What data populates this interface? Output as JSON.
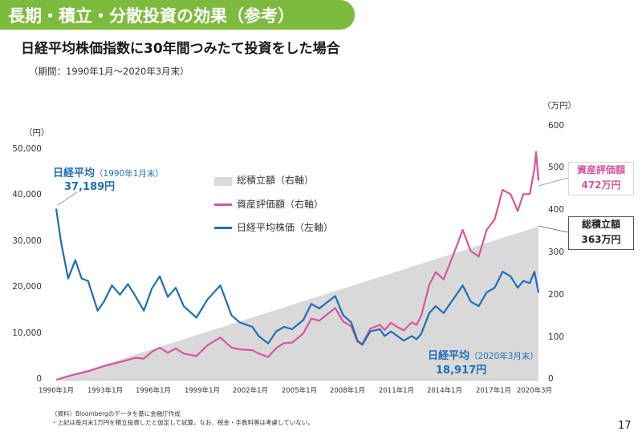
{
  "header": {
    "banner_title": "長期・積立・分散投資の効果（参考）",
    "subtitle": "日経平均株価指数に30年間つみたて投資をした場合",
    "period": "（期間：1990年1月～2020年3月末）"
  },
  "axes": {
    "left_unit": "（円）",
    "right_unit": "（万円）",
    "left_ticks": [
      "50,000",
      "40,000",
      "30,000",
      "20,000",
      "10,000",
      "0"
    ],
    "right_ticks": [
      "600",
      "500",
      "400",
      "300",
      "200",
      "100",
      "0"
    ],
    "x_ticks": [
      "1990年1月",
      "1993年1月",
      "1996年1月",
      "1999年1月",
      "2002年1月",
      "2005年1月",
      "2008年1月",
      "2011年1月",
      "2014年1月",
      "2017年1月",
      "2020年3月"
    ]
  },
  "legend": {
    "cumulative": "総積立額（右軸）",
    "asset_value": "資産評価額（右軸）",
    "nikkei": "日経平均株価（左軸）"
  },
  "annotations": {
    "start_label": "日経平均",
    "start_date": "（1990年1月末）",
    "start_value": "37,189円",
    "end_label": "日経平均",
    "end_date": "（2020年3月末）",
    "end_value": "18,917円",
    "asset_box_label": "資産評価額",
    "asset_box_value": "472万円",
    "total_box_label": "総積立額",
    "total_box_value": "363万円"
  },
  "notes": {
    "source": "（資料）Bloombergのデータを基に金融庁作成",
    "assumption": "・上記は毎月末1万円を積立投資したと仮定して試算。なお、税金・手数料等は考慮していない。"
  },
  "page_number": "17",
  "colors": {
    "banner": "#7dbb3f",
    "nikkei": "#1f6eb5",
    "asset_value": "#d6559c",
    "cumulative": "#d9d9d9"
  },
  "chart_data": {
    "type": "line",
    "title": "日経平均株価指数に30年間つみたて投資をした場合",
    "x_unit": "year",
    "left_axis": {
      "label": "円",
      "ylim": [
        0,
        50000
      ]
    },
    "right_axis": {
      "label": "万円",
      "ylim": [
        0,
        600
      ]
    },
    "series": [
      {
        "name": "日経平均株価（左軸）",
        "axis": "left",
        "type": "line",
        "points": [
          [
            1990.0,
            37189
          ],
          [
            1990.3,
            30000
          ],
          [
            1990.75,
            22000
          ],
          [
            1991.2,
            26000
          ],
          [
            1991.6,
            22000
          ],
          [
            1992.0,
            21500
          ],
          [
            1992.6,
            15000
          ],
          [
            1993.0,
            17000
          ],
          [
            1993.5,
            20500
          ],
          [
            1994.0,
            18500
          ],
          [
            1994.5,
            20800
          ],
          [
            1995.0,
            18000
          ],
          [
            1995.5,
            15000
          ],
          [
            1996.0,
            19800
          ],
          [
            1996.5,
            22500
          ],
          [
            1997.0,
            18000
          ],
          [
            1997.5,
            20000
          ],
          [
            1998.0,
            16000
          ],
          [
            1998.8,
            13500
          ],
          [
            1999.5,
            17500
          ],
          [
            2000.3,
            20500
          ],
          [
            2001.0,
            14000
          ],
          [
            2001.5,
            12500
          ],
          [
            2002.3,
            11500
          ],
          [
            2002.7,
            9500
          ],
          [
            2003.3,
            7900
          ],
          [
            2003.8,
            10500
          ],
          [
            2004.3,
            11500
          ],
          [
            2004.8,
            11000
          ],
          [
            2005.5,
            13000
          ],
          [
            2006.0,
            16500
          ],
          [
            2006.5,
            15500
          ],
          [
            2007.5,
            18200
          ],
          [
            2008.0,
            14000
          ],
          [
            2008.5,
            12500
          ],
          [
            2008.9,
            8500
          ],
          [
            2009.2,
            7600
          ],
          [
            2009.7,
            10500
          ],
          [
            2010.3,
            11000
          ],
          [
            2010.6,
            9500
          ],
          [
            2011.0,
            10500
          ],
          [
            2011.4,
            9500
          ],
          [
            2011.8,
            8500
          ],
          [
            2012.3,
            9500
          ],
          [
            2012.6,
            8800
          ],
          [
            2012.9,
            10000
          ],
          [
            2013.4,
            14500
          ],
          [
            2013.8,
            16000
          ],
          [
            2014.3,
            14500
          ],
          [
            2014.9,
            17500
          ],
          [
            2015.5,
            20500
          ],
          [
            2016.0,
            17000
          ],
          [
            2016.5,
            16000
          ],
          [
            2017.0,
            19000
          ],
          [
            2017.5,
            20000
          ],
          [
            2018.0,
            23500
          ],
          [
            2018.5,
            22500
          ],
          [
            2018.95,
            20000
          ],
          [
            2019.3,
            21500
          ],
          [
            2019.7,
            21000
          ],
          [
            2020.0,
            23500
          ],
          [
            2020.25,
            18917
          ]
        ]
      },
      {
        "name": "資産評価額（右軸）",
        "axis": "right",
        "type": "line",
        "points": [
          [
            1990.0,
            0
          ],
          [
            1991.0,
            11
          ],
          [
            1992.0,
            20
          ],
          [
            1993.0,
            32
          ],
          [
            1994.0,
            42
          ],
          [
            1995.0,
            52
          ],
          [
            1995.5,
            50
          ],
          [
            1996.0,
            66
          ],
          [
            1996.5,
            76
          ],
          [
            1997.0,
            64
          ],
          [
            1997.5,
            74
          ],
          [
            1998.0,
            62
          ],
          [
            1998.8,
            56
          ],
          [
            1999.5,
            82
          ],
          [
            2000.3,
            100
          ],
          [
            2001.0,
            76
          ],
          [
            2001.5,
            72
          ],
          [
            2002.3,
            70
          ],
          [
            2002.7,
            62
          ],
          [
            2003.3,
            54
          ],
          [
            2003.8,
            75
          ],
          [
            2004.3,
            87
          ],
          [
            2004.8,
            88
          ],
          [
            2005.5,
            110
          ],
          [
            2006.0,
            145
          ],
          [
            2006.5,
            140
          ],
          [
            2007.5,
            170
          ],
          [
            2008.0,
            138
          ],
          [
            2008.5,
            127
          ],
          [
            2008.9,
            90
          ],
          [
            2009.2,
            85
          ],
          [
            2009.7,
            121
          ],
          [
            2010.3,
            130
          ],
          [
            2010.6,
            118
          ],
          [
            2011.0,
            135
          ],
          [
            2011.4,
            125
          ],
          [
            2011.8,
            117
          ],
          [
            2012.3,
            136
          ],
          [
            2012.6,
            130
          ],
          [
            2012.9,
            152
          ],
          [
            2013.4,
            225
          ],
          [
            2013.8,
            255
          ],
          [
            2014.3,
            238
          ],
          [
            2014.9,
            295
          ],
          [
            2015.5,
            355
          ],
          [
            2016.0,
            305
          ],
          [
            2016.5,
            292
          ],
          [
            2017.0,
            355
          ],
          [
            2017.5,
            380
          ],
          [
            2018.0,
            450
          ],
          [
            2018.5,
            440
          ],
          [
            2018.95,
            400
          ],
          [
            2019.3,
            440
          ],
          [
            2019.7,
            440
          ],
          [
            2020.0,
            500
          ],
          [
            2020.1,
            540
          ],
          [
            2020.25,
            472
          ]
        ]
      },
      {
        "name": "総積立額（右軸）",
        "axis": "right",
        "type": "area",
        "points": [
          [
            1990.0,
            0
          ],
          [
            2020.25,
            363
          ]
        ]
      }
    ]
  }
}
